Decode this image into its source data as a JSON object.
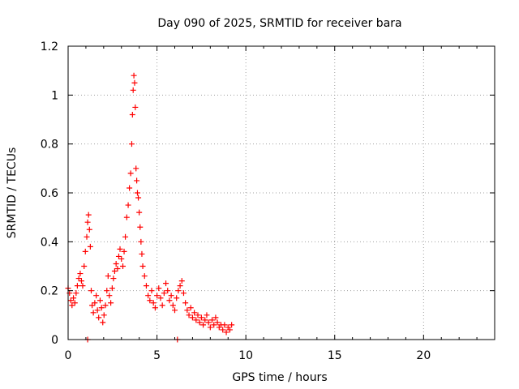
{
  "chart_data": {
    "type": "scatter",
    "title": "Day 090 of 2025, SRMTID for receiver bara",
    "xlabel": "GPS time / hours",
    "ylabel": "SRMTID / TECUs",
    "xlim": [
      0,
      24
    ],
    "ylim": [
      0,
      1.2
    ],
    "x_ticks": [
      0,
      5,
      10,
      15,
      20
    ],
    "x_tick_labels": [
      "0",
      "5",
      "10",
      "15",
      "20"
    ],
    "y_ticks": [
      0,
      0.2,
      0.4,
      0.6,
      0.8,
      1.0,
      1.2
    ],
    "y_tick_labels": [
      "0",
      "0.2",
      "0.4",
      "0.6",
      "0.8",
      "1",
      "1.2"
    ],
    "grid": true,
    "marker": "plus",
    "color": "#ff0000",
    "x": [
      0.0,
      0.08,
      0.15,
      0.22,
      0.3,
      0.38,
      0.45,
      0.52,
      0.6,
      0.68,
      0.75,
      0.82,
      0.9,
      0.97,
      1.05,
      1.1,
      1.15,
      1.2,
      1.25,
      1.3,
      1.35,
      1.42,
      1.5,
      1.58,
      1.65,
      1.72,
      1.8,
      1.88,
      1.95,
      2.02,
      2.1,
      2.18,
      2.25,
      2.32,
      2.4,
      2.48,
      2.55,
      2.62,
      2.7,
      2.78,
      2.85,
      2.92,
      3.0,
      3.08,
      3.15,
      3.22,
      3.3,
      3.38,
      3.45,
      3.52,
      3.58,
      3.62,
      3.66,
      3.7,
      3.74,
      3.78,
      3.82,
      3.86,
      3.9,
      3.95,
      4.0,
      4.05,
      4.1,
      4.15,
      4.2,
      4.3,
      4.4,
      4.5,
      4.6,
      4.7,
      4.8,
      4.9,
      5.0,
      5.1,
      5.2,
      5.3,
      5.4,
      5.5,
      5.6,
      5.7,
      5.8,
      5.9,
      6.0,
      6.1,
      6.2,
      6.3,
      6.4,
      6.5,
      6.6,
      6.7,
      6.8,
      6.9,
      7.0,
      7.1,
      7.2,
      7.3,
      7.4,
      7.5,
      7.6,
      7.7,
      7.8,
      7.9,
      8.0,
      8.1,
      8.2,
      8.3,
      8.4,
      8.5,
      8.6,
      8.7,
      8.8,
      8.9,
      9.0,
      9.1,
      9.2,
      1.1,
      6.15
    ],
    "values": [
      0.21,
      0.19,
      0.16,
      0.14,
      0.17,
      0.15,
      0.19,
      0.22,
      0.25,
      0.27,
      0.24,
      0.22,
      0.3,
      0.36,
      0.42,
      0.48,
      0.51,
      0.45,
      0.38,
      0.2,
      0.14,
      0.11,
      0.15,
      0.18,
      0.12,
      0.09,
      0.16,
      0.13,
      0.07,
      0.1,
      0.14,
      0.2,
      0.26,
      0.18,
      0.15,
      0.21,
      0.25,
      0.28,
      0.31,
      0.29,
      0.34,
      0.37,
      0.33,
      0.3,
      0.36,
      0.42,
      0.5,
      0.55,
      0.62,
      0.68,
      0.8,
      0.92,
      1.02,
      1.08,
      1.05,
      0.95,
      0.7,
      0.65,
      0.6,
      0.58,
      0.52,
      0.46,
      0.4,
      0.35,
      0.3,
      0.26,
      0.22,
      0.18,
      0.16,
      0.2,
      0.15,
      0.13,
      0.18,
      0.21,
      0.17,
      0.14,
      0.19,
      0.23,
      0.2,
      0.16,
      0.18,
      0.14,
      0.12,
      0.17,
      0.2,
      0.22,
      0.24,
      0.19,
      0.15,
      0.12,
      0.1,
      0.13,
      0.09,
      0.11,
      0.08,
      0.1,
      0.07,
      0.09,
      0.06,
      0.08,
      0.1,
      0.07,
      0.05,
      0.08,
      0.06,
      0.09,
      0.07,
      0.05,
      0.06,
      0.04,
      0.06,
      0.03,
      0.05,
      0.04,
      0.06,
      0.0,
      0.0
    ]
  }
}
